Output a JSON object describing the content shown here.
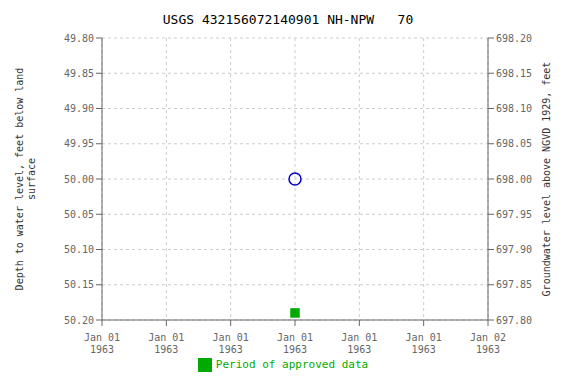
{
  "chart_data": {
    "type": "scatter",
    "title": "USGS 432156072140901 NH-NPW   70",
    "ylabel": "Depth to water level, feet below land\nsurface",
    "y2label": "Groundwater level above NGVD 1929, feet",
    "categories": [
      "Jan 01\n1963",
      "Jan 01\n1963",
      "Jan 01\n1963",
      "Jan 01\n1963",
      "Jan 01\n1963",
      "Jan 01\n1963",
      "Jan 02\n1963"
    ],
    "series": [
      {
        "color": "#0000cc",
        "marker": "open_circle",
        "values": [
          null,
          null,
          null,
          50,
          null,
          null,
          null
        ]
      },
      {
        "name": "Period of approved data",
        "color": "#00aa00",
        "marker": "square",
        "values": [
          null,
          null,
          null,
          50.19,
          null,
          null,
          null
        ]
      }
    ],
    "ylim": [
      50.2,
      49.8
    ],
    "yticks": [
      {
        "value": 49.8,
        "label": "49.80"
      },
      49.85,
      {
        "value": 49.9,
        "label": "49.90"
      },
      49.95,
      {
        "value": 50,
        "label": "50.00"
      },
      50.05,
      {
        "value": 50.1,
        "label": "50.10"
      },
      50.15,
      {
        "value": 50.2,
        "label": "50.20"
      }
    ],
    "y2lim": [
      697.8,
      698.2
    ],
    "y2ticks": [
      {
        "value": 697.8,
        "label": "697.80"
      },
      697.85,
      {
        "value": 697.9,
        "label": "697.90"
      },
      697.95,
      {
        "value": 698,
        "label": "698.00"
      },
      698.05,
      {
        "value": 698.1,
        "label": "698.10"
      },
      698.15,
      {
        "value": 698.2,
        "label": "698.20"
      }
    ],
    "grid": true,
    "legend": "bottom"
  }
}
